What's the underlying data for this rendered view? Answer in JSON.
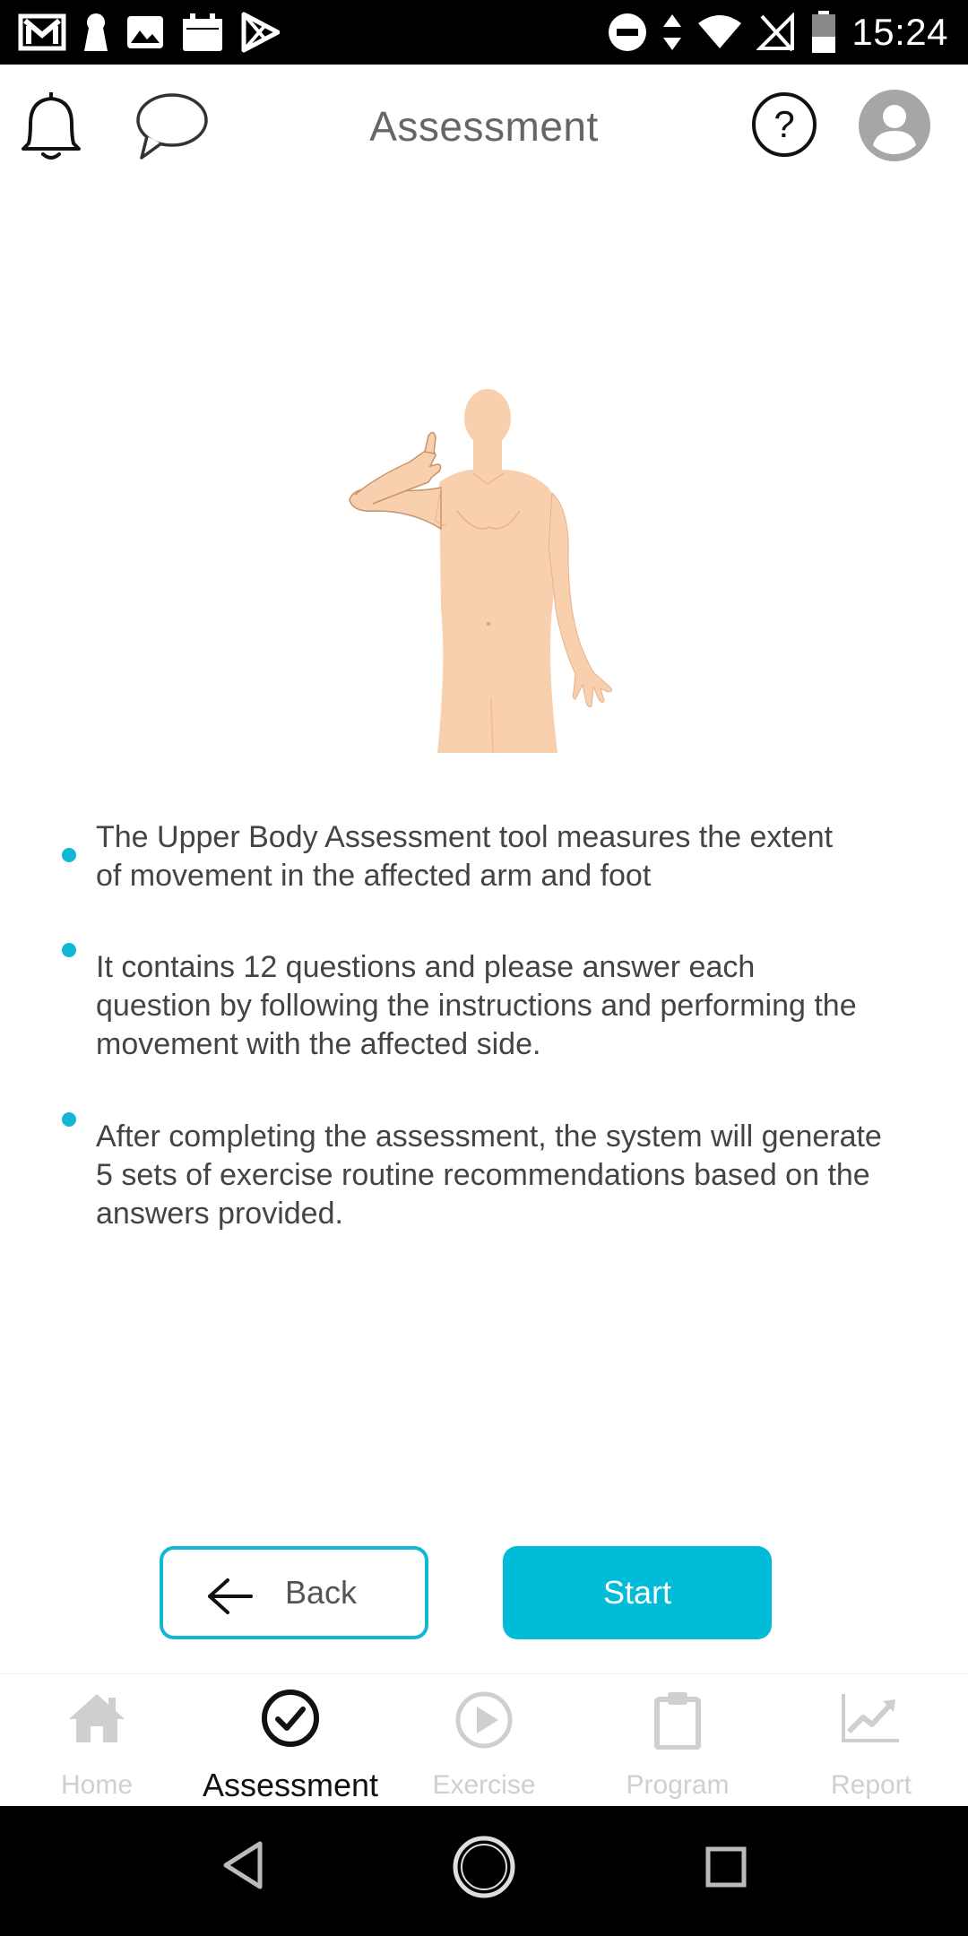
{
  "status_bar": {
    "time": "15:24",
    "left_icons": [
      "gmail-icon",
      "keyhole-icon",
      "image-icon",
      "calendar-icon",
      "play-store-icon"
    ],
    "right_icons": [
      "dnd-icon",
      "data-arrows-icon",
      "wifi-icon",
      "no-sim-icon",
      "battery-icon"
    ]
  },
  "header": {
    "title": "Assessment",
    "icons": [
      "bell-icon",
      "chat-icon",
      "help-icon",
      "profile-avatar-icon"
    ]
  },
  "info": {
    "items": [
      {
        "text": "The Upper Body Assessment tool measures the extent of movement in the affected arm and foot"
      },
      {
        "text": "It contains 12 questions and please answer each question by following the instructions and performing the movement with the affected side."
      },
      {
        "text": "After completing the assessment, the system will generate 5 sets of exercise routine recommendations based on the answers provided."
      }
    ]
  },
  "buttons": {
    "back_label": "Back",
    "start_label": "Start"
  },
  "nav": {
    "items": [
      {
        "label": "Home",
        "icon": "home-icon",
        "active": false
      },
      {
        "label": "Assessment",
        "icon": "check-circle-icon",
        "active": true
      },
      {
        "label": "Exercise",
        "icon": "play-circle-icon",
        "active": false
      },
      {
        "label": "Program",
        "icon": "clipboard-icon",
        "active": false
      },
      {
        "label": "Report",
        "icon": "trend-chart-icon",
        "active": false
      }
    ]
  },
  "colors": {
    "accent": "#00bcd9",
    "skin": "#f9d0ad",
    "inactive_nav": "#cfcfcf"
  }
}
